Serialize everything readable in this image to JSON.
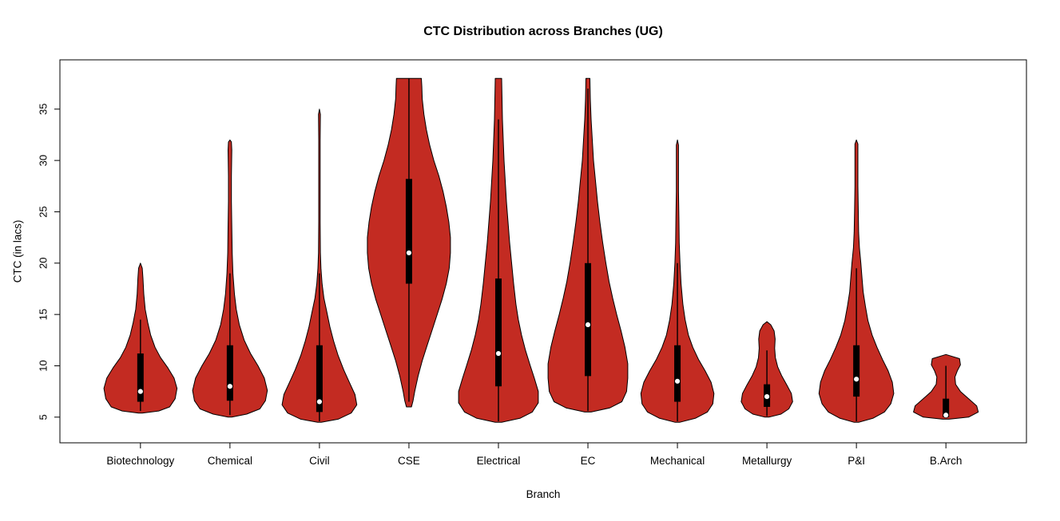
{
  "chart_data": {
    "type": "violin",
    "title": "CTC Distribution across Branches (UG)",
    "xlabel": "Branch",
    "ylabel": "CTC (in lacs)",
    "y_ticks": [
      5,
      10,
      15,
      20,
      25,
      30,
      35
    ],
    "ylim_visible": [
      2.5,
      39.8
    ],
    "fill_color": "#C32B22",
    "outline_color": "#000000",
    "box_color": "#000000",
    "median_color": "#ffffff",
    "categories": [
      "Biotechnology",
      "Chemical",
      "Civil",
      "CSE",
      "Electrical",
      "EC",
      "Mechanical",
      "Metallurgy",
      "P&I",
      "B.Arch"
    ],
    "series": [
      {
        "name": "Biotechnology",
        "width": 0.88,
        "stats": {
          "min": 5.4,
          "max": 20,
          "q1": 6.5,
          "q3": 11.2,
          "median": 7.5,
          "whisker_low": 5.6,
          "whisker_high": 14.5
        },
        "profile": [
          [
            5.4,
            0.05
          ],
          [
            5.6,
            0.5
          ],
          [
            6.0,
            0.8
          ],
          [
            6.8,
            0.95
          ],
          [
            7.8,
            1.0
          ],
          [
            8.8,
            0.92
          ],
          [
            9.8,
            0.75
          ],
          [
            10.8,
            0.55
          ],
          [
            11.8,
            0.4
          ],
          [
            13.0,
            0.28
          ],
          [
            14.2,
            0.2
          ],
          [
            15.5,
            0.13
          ],
          [
            17.0,
            0.09
          ],
          [
            18.5,
            0.07
          ],
          [
            19.5,
            0.05
          ],
          [
            20.0,
            0
          ]
        ]
      },
      {
        "name": "Chemical",
        "width": 0.9,
        "stats": {
          "min": 5.0,
          "max": 32,
          "q1": 6.6,
          "q3": 12,
          "median": 8.0,
          "whisker_low": 5.2,
          "whisker_high": 19
        },
        "profile": [
          [
            5.0,
            0.05
          ],
          [
            5.3,
            0.45
          ],
          [
            5.8,
            0.8
          ],
          [
            6.6,
            0.95
          ],
          [
            7.6,
            1.0
          ],
          [
            8.8,
            0.92
          ],
          [
            10.0,
            0.75
          ],
          [
            11.2,
            0.55
          ],
          [
            12.5,
            0.38
          ],
          [
            14.0,
            0.25
          ],
          [
            15.5,
            0.17
          ],
          [
            17.0,
            0.12
          ],
          [
            19.0,
            0.08
          ],
          [
            21.0,
            0.06
          ],
          [
            23.5,
            0.05
          ],
          [
            26.0,
            0.04
          ],
          [
            28.5,
            0.04
          ],
          [
            31.0,
            0.05
          ],
          [
            31.8,
            0.04
          ],
          [
            32.0,
            0
          ]
        ]
      },
      {
        "name": "Civil",
        "width": 0.9,
        "stats": {
          "min": 4.5,
          "max": 35,
          "q1": 5.5,
          "q3": 12,
          "median": 6.5,
          "whisker_low": 4.6,
          "whisker_high": 19
        },
        "profile": [
          [
            4.5,
            0.05
          ],
          [
            4.8,
            0.5
          ],
          [
            5.4,
            0.85
          ],
          [
            6.2,
            1.0
          ],
          [
            7.2,
            0.95
          ],
          [
            8.4,
            0.8
          ],
          [
            9.6,
            0.65
          ],
          [
            11.0,
            0.5
          ],
          [
            12.4,
            0.38
          ],
          [
            13.8,
            0.28
          ],
          [
            15.2,
            0.2
          ],
          [
            16.6,
            0.12
          ],
          [
            18.0,
            0.07
          ],
          [
            19.5,
            0.04
          ],
          [
            21.0,
            0.025
          ],
          [
            24.0,
            0.02
          ],
          [
            28.0,
            0.02
          ],
          [
            32.0,
            0.02
          ],
          [
            34.5,
            0.025
          ],
          [
            35.0,
            0
          ]
        ]
      },
      {
        "name": "CSE",
        "width": 1.0,
        "stats": {
          "min": 6,
          "max": 38,
          "q1": 18,
          "q3": 28.2,
          "median": 21,
          "whisker_low": 6.5,
          "whisker_high": 38
        },
        "profile": [
          [
            6.0,
            0.06
          ],
          [
            6.6,
            0.1
          ],
          [
            7.5,
            0.14
          ],
          [
            9.0,
            0.22
          ],
          [
            10.5,
            0.32
          ],
          [
            12.0,
            0.44
          ],
          [
            13.5,
            0.56
          ],
          [
            15.0,
            0.68
          ],
          [
            16.5,
            0.8
          ],
          [
            18.0,
            0.9
          ],
          [
            19.5,
            0.97
          ],
          [
            21.0,
            1.0
          ],
          [
            22.5,
            1.0
          ],
          [
            24.0,
            0.96
          ],
          [
            25.5,
            0.9
          ],
          [
            27.0,
            0.82
          ],
          [
            28.5,
            0.72
          ],
          [
            30.0,
            0.6
          ],
          [
            31.5,
            0.5
          ],
          [
            33.0,
            0.42
          ],
          [
            34.5,
            0.36
          ],
          [
            36.0,
            0.32
          ],
          [
            37.2,
            0.31
          ],
          [
            38.0,
            0.3
          ]
        ]
      },
      {
        "name": "Electrical",
        "width": 0.96,
        "stats": {
          "min": 4.5,
          "max": 38,
          "q1": 8,
          "q3": 18.5,
          "median": 11.2,
          "whisker_low": 4.6,
          "whisker_high": 34
        },
        "profile": [
          [
            4.5,
            0.08
          ],
          [
            4.9,
            0.55
          ],
          [
            5.5,
            0.85
          ],
          [
            6.4,
            1.0
          ],
          [
            7.5,
            1.0
          ],
          [
            8.8,
            0.9
          ],
          [
            10.0,
            0.8
          ],
          [
            11.5,
            0.68
          ],
          [
            13.0,
            0.58
          ],
          [
            14.5,
            0.5
          ],
          [
            16.0,
            0.44
          ],
          [
            18.0,
            0.38
          ],
          [
            20.0,
            0.33
          ],
          [
            22.0,
            0.28
          ],
          [
            24.0,
            0.24
          ],
          [
            26.0,
            0.2
          ],
          [
            28.0,
            0.17
          ],
          [
            30.0,
            0.14
          ],
          [
            32.0,
            0.12
          ],
          [
            34.0,
            0.1
          ],
          [
            36.0,
            0.09
          ],
          [
            38.0,
            0.08
          ]
        ]
      },
      {
        "name": "EC",
        "width": 0.96,
        "stats": {
          "min": 5.5,
          "max": 38,
          "q1": 9,
          "q3": 20,
          "median": 14,
          "whisker_low": 5.6,
          "whisker_high": 37
        },
        "profile": [
          [
            5.5,
            0.08
          ],
          [
            5.9,
            0.55
          ],
          [
            6.5,
            0.85
          ],
          [
            7.5,
            0.97
          ],
          [
            8.8,
            1.0
          ],
          [
            10.2,
            1.0
          ],
          [
            11.8,
            0.93
          ],
          [
            13.4,
            0.83
          ],
          [
            15.0,
            0.72
          ],
          [
            16.6,
            0.62
          ],
          [
            18.2,
            0.53
          ],
          [
            20.0,
            0.45
          ],
          [
            22.0,
            0.37
          ],
          [
            24.0,
            0.3
          ],
          [
            26.0,
            0.24
          ],
          [
            28.0,
            0.19
          ],
          [
            30.0,
            0.14
          ],
          [
            32.0,
            0.11
          ],
          [
            34.0,
            0.08
          ],
          [
            36.0,
            0.06
          ],
          [
            38.0,
            0.05
          ]
        ]
      },
      {
        "name": "Mechanical",
        "width": 0.88,
        "stats": {
          "min": 4.5,
          "max": 32,
          "q1": 6.5,
          "q3": 12,
          "median": 8.5,
          "whisker_low": 4.6,
          "whisker_high": 20
        },
        "profile": [
          [
            4.5,
            0.06
          ],
          [
            4.9,
            0.5
          ],
          [
            5.5,
            0.82
          ],
          [
            6.3,
            0.97
          ],
          [
            7.3,
            1.0
          ],
          [
            8.4,
            0.92
          ],
          [
            9.5,
            0.76
          ],
          [
            10.6,
            0.58
          ],
          [
            11.8,
            0.42
          ],
          [
            13.0,
            0.3
          ],
          [
            14.5,
            0.21
          ],
          [
            16.0,
            0.15
          ],
          [
            18.0,
            0.1
          ],
          [
            20.0,
            0.07
          ],
          [
            22.0,
            0.05
          ],
          [
            24.5,
            0.04
          ],
          [
            27.0,
            0.03
          ],
          [
            29.5,
            0.03
          ],
          [
            31.5,
            0.03
          ],
          [
            32.0,
            0
          ]
        ]
      },
      {
        "name": "Metallurgy",
        "width": 0.62,
        "stats": {
          "min": 5.0,
          "max": 14.3,
          "q1": 6,
          "q3": 8.2,
          "median": 7,
          "whisker_low": 5.1,
          "whisker_high": 11.5
        },
        "profile": [
          [
            5.0,
            0.08
          ],
          [
            5.3,
            0.55
          ],
          [
            5.8,
            0.85
          ],
          [
            6.5,
            1.0
          ],
          [
            7.3,
            0.95
          ],
          [
            8.1,
            0.78
          ],
          [
            9.0,
            0.58
          ],
          [
            9.9,
            0.42
          ],
          [
            10.8,
            0.33
          ],
          [
            11.7,
            0.3
          ],
          [
            12.6,
            0.32
          ],
          [
            13.4,
            0.28
          ],
          [
            14.0,
            0.15
          ],
          [
            14.3,
            0
          ]
        ]
      },
      {
        "name": "P&I",
        "width": 0.9,
        "stats": {
          "min": 4.5,
          "max": 32,
          "q1": 7,
          "q3": 12,
          "median": 8.7,
          "whisker_low": 4.6,
          "whisker_high": 19.5
        },
        "profile": [
          [
            4.5,
            0.06
          ],
          [
            4.9,
            0.45
          ],
          [
            5.5,
            0.75
          ],
          [
            6.3,
            0.92
          ],
          [
            7.3,
            1.0
          ],
          [
            8.4,
            0.96
          ],
          [
            9.5,
            0.85
          ],
          [
            10.6,
            0.7
          ],
          [
            11.8,
            0.55
          ],
          [
            13.0,
            0.42
          ],
          [
            14.4,
            0.31
          ],
          [
            15.8,
            0.24
          ],
          [
            17.2,
            0.18
          ],
          [
            18.6,
            0.15
          ],
          [
            20.0,
            0.12
          ],
          [
            21.5,
            0.08
          ],
          [
            23.0,
            0.06
          ],
          [
            25.0,
            0.05
          ],
          [
            27.5,
            0.04
          ],
          [
            30.0,
            0.04
          ],
          [
            31.6,
            0.04
          ],
          [
            32.0,
            0
          ]
        ]
      },
      {
        "name": "B.Arch",
        "width": 0.78,
        "stats": {
          "min": 4.8,
          "max": 11.1,
          "q1": 5.0,
          "q3": 6.8,
          "median": 5.2,
          "whisker_low": 4.9,
          "whisker_high": 10
        },
        "profile": [
          [
            4.8,
            0.1
          ],
          [
            5.0,
            0.7
          ],
          [
            5.5,
            1.0
          ],
          [
            6.1,
            0.95
          ],
          [
            6.8,
            0.7
          ],
          [
            7.5,
            0.45
          ],
          [
            8.2,
            0.3
          ],
          [
            8.9,
            0.28
          ],
          [
            9.5,
            0.35
          ],
          [
            10.1,
            0.45
          ],
          [
            10.7,
            0.42
          ],
          [
            11.1,
            0
          ]
        ]
      }
    ]
  }
}
